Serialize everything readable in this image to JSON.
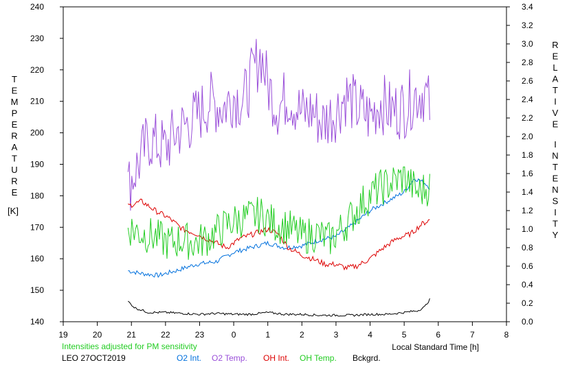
{
  "chart_data": {
    "type": "line",
    "title": "",
    "left_axis": {
      "label_letters": [
        "T",
        "E",
        "M",
        "P",
        "E",
        "R",
        "A",
        "T",
        "U",
        "R",
        "E"
      ],
      "unit": "[K]",
      "ylim": [
        140,
        240
      ],
      "ticks": [
        "240",
        "230",
        "220",
        "210",
        "200",
        "190",
        "180",
        "170",
        "160",
        "150",
        "140"
      ]
    },
    "right_axis": {
      "label_word1": [
        "R",
        "E",
        "L",
        "A",
        "T",
        "I",
        "V",
        "E"
      ],
      "label_word2": [
        "I",
        "N",
        "T",
        "E",
        "N",
        "S",
        "I",
        "T",
        "Y"
      ],
      "ylim": [
        0,
        3.4
      ],
      "ticks": [
        "3.4",
        "3.2",
        "3.0",
        "2.8",
        "2.6",
        "2.4",
        "2.2",
        "2.0",
        "1.8",
        "1.6",
        "1.4",
        "1.2",
        "1.0",
        "0.8",
        "0.6",
        "0.4",
        "0.2",
        "0.0"
      ]
    },
    "x_axis": {
      "label": "Local Standard Time [h]",
      "xlim": [
        19,
        32
      ],
      "ticks": [
        "19",
        "20",
        "21",
        "22",
        "23",
        "0",
        "1",
        "2",
        "3",
        "4",
        "5",
        "6",
        "7",
        "8"
      ]
    },
    "series": [
      {
        "name": "O2 Int.",
        "axis": "right",
        "color": "#0070dd",
        "x": [
          20.9,
          21.3,
          21.8,
          22.3,
          22.9,
          23.5,
          24.0,
          24.5,
          25.0,
          25.5,
          26.0,
          26.5,
          27.0,
          27.5,
          28.0,
          28.5,
          29.0,
          29.3,
          29.6,
          29.75
        ],
        "y": [
          0.55,
          0.52,
          0.5,
          0.55,
          0.62,
          0.65,
          0.75,
          0.8,
          0.85,
          0.8,
          0.82,
          0.88,
          0.92,
          1.05,
          1.2,
          1.3,
          1.4,
          1.55,
          1.5,
          1.45
        ]
      },
      {
        "name": "O2 Temp.",
        "axis": "left",
        "color": "#9a4fd9",
        "x": [
          20.9,
          21.2,
          21.5,
          22.0,
          22.3,
          22.9,
          23.3,
          23.7,
          24.0,
          24.3,
          24.6,
          24.8,
          25.0,
          25.3,
          25.6,
          26.0,
          26.3,
          26.6,
          27.0,
          27.3,
          27.6,
          28.0,
          28.3,
          28.6,
          29.0,
          29.3,
          29.6,
          29.75
        ],
        "y": [
          183,
          190,
          198,
          195,
          200,
          205,
          210,
          208,
          212,
          210,
          220,
          225,
          215,
          208,
          212,
          206,
          207,
          203,
          207,
          212,
          208,
          205,
          210,
          207,
          208,
          212,
          213,
          208
        ]
      },
      {
        "name": "OH Int.",
        "axis": "right",
        "color": "#dd0000",
        "x": [
          20.9,
          21.3,
          21.7,
          22.1,
          22.5,
          22.9,
          23.3,
          23.8,
          24.2,
          24.6,
          25.0,
          25.3,
          25.6,
          26.0,
          26.3,
          26.7,
          27.0,
          27.3,
          27.6,
          28.0,
          28.4,
          28.8,
          29.2,
          29.5,
          29.75
        ],
        "y": [
          1.25,
          1.3,
          1.2,
          1.12,
          1.0,
          0.95,
          0.88,
          0.8,
          0.9,
          0.95,
          1.0,
          0.95,
          0.8,
          0.72,
          0.68,
          0.62,
          0.62,
          0.58,
          0.6,
          0.68,
          0.8,
          0.9,
          0.95,
          1.05,
          1.1
        ]
      },
      {
        "name": "OH Temp.",
        "axis": "left",
        "color": "#22cc22",
        "x": [
          20.9,
          21.3,
          21.7,
          22.1,
          22.5,
          22.9,
          23.3,
          23.7,
          24.0,
          24.4,
          24.8,
          25.2,
          25.6,
          26.0,
          26.4,
          26.8,
          27.2,
          27.5,
          27.8,
          28.2,
          28.6,
          29.0,
          29.4,
          29.75
        ],
        "y": [
          170,
          168,
          167,
          165,
          166,
          165,
          167,
          170,
          172,
          173,
          174,
          171,
          170,
          167,
          168,
          166,
          170,
          174,
          178,
          182,
          184,
          186,
          181,
          183
        ]
      },
      {
        "name": "Bckgrd.",
        "axis": "right",
        "color": "#000000",
        "x": [
          20.9,
          21.1,
          21.5,
          22.0,
          22.5,
          23.0,
          23.5,
          24.0,
          24.5,
          25.0,
          25.5,
          26.0,
          26.5,
          27.0,
          27.5,
          28.0,
          28.5,
          29.0,
          29.4,
          29.6,
          29.75
        ],
        "y": [
          0.22,
          0.15,
          0.1,
          0.1,
          0.09,
          0.08,
          0.09,
          0.08,
          0.08,
          0.1,
          0.08,
          0.08,
          0.07,
          0.07,
          0.07,
          0.08,
          0.08,
          0.1,
          0.12,
          0.16,
          0.24
        ]
      }
    ]
  },
  "footer": {
    "note": "Intensities adjusted for PM sensitivity",
    "station": "LEO 27OCT2019",
    "note_color": "#22cc22"
  }
}
